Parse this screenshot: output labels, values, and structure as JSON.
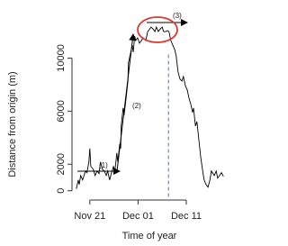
{
  "chart_data": {
    "type": "line",
    "x_label": "Time of year",
    "y_label": "Distance from origin (m)",
    "xlim": [
      321.3,
      353.4
    ],
    "ylim": [
      -700,
      13700
    ],
    "xticks": [
      {
        "value": 325,
        "label": "Nov 21"
      },
      {
        "value": 335,
        "label": "Dec 01"
      },
      {
        "value": 345,
        "label": "Dec 11"
      }
    ],
    "yticks": [
      0,
      2000,
      6000,
      10000
    ],
    "vline": 341.3,
    "vline_color": "#3a78c9",
    "annotations": [
      "(1)",
      "(2)",
      "(3)"
    ],
    "series": [
      {
        "color": "#000000",
        "x": [
          322.2,
          322.6,
          322.8,
          323.1,
          323.5,
          324.1,
          324.4,
          324.8,
          325.0,
          325.2,
          325.7,
          326.1,
          326.5,
          326.9,
          327.2,
          327.6,
          328.0,
          328.4,
          328.7,
          329.1,
          329.5,
          329.9,
          330.2,
          330.6,
          330.8,
          331.2,
          331.4,
          331.5,
          331.9,
          332.1,
          332.5,
          332.7,
          332.9,
          333.0,
          333.4,
          333.8,
          334.0,
          334.3,
          334.5,
          334.9,
          335.3,
          335.7,
          336.0,
          336.6,
          337.0,
          337.3,
          337.7,
          338.1,
          338.5,
          338.8,
          339.2,
          339.6,
          340.0,
          340.3,
          340.7,
          341.1,
          341.4,
          341.8,
          342.2,
          342.6,
          342.9,
          343.3,
          343.7,
          344.1,
          344.4,
          344.8,
          345.2,
          345.6,
          345.9,
          346.3,
          346.5,
          346.9,
          347.2,
          347.6,
          348.0,
          348.4,
          348.7,
          349.1,
          349.5,
          349.9,
          350.2,
          350.8,
          351.2,
          351.5,
          351.9,
          352.3,
          352.7
        ],
        "values": [
          140,
          810,
          470,
          1150,
          810,
          1490,
          1360,
          2170,
          3190,
          1830,
          1630,
          1150,
          1490,
          1290,
          2170,
          1630,
          1490,
          1150,
          1490,
          810,
          1360,
          1830,
          1490,
          2850,
          2170,
          3530,
          3190,
          4880,
          6240,
          5700,
          6920,
          7590,
          8270,
          9630,
          10310,
          10980,
          10440,
          11660,
          11320,
          11530,
          11120,
          11320,
          11530,
          11320,
          12000,
          12140,
          12340,
          12200,
          12000,
          12340,
          12000,
          12200,
          12340,
          12000,
          12000,
          12070,
          12000,
          11320,
          10980,
          10640,
          10170,
          8950,
          8410,
          8270,
          8610,
          7930,
          7590,
          6920,
          6580,
          5900,
          6240,
          4880,
          5220,
          3860,
          2510,
          1490,
          810,
          470,
          270,
          810,
          1490,
          1150,
          1490,
          950,
          1150,
          1360,
          1080
        ]
      }
    ]
  }
}
